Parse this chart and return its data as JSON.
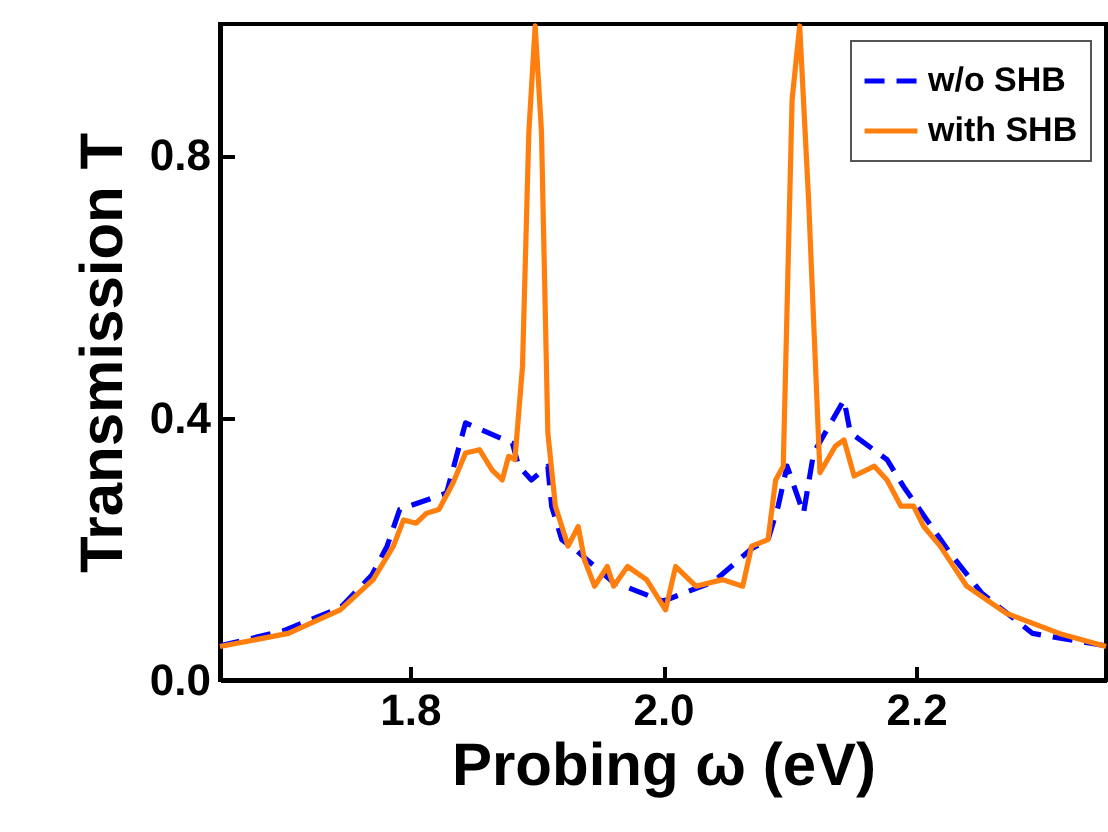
{
  "chart_data": {
    "type": "line",
    "xlabel": "Probing ω (eV)",
    "ylabel": "Transmission T",
    "xlim": [
      1.65,
      2.35
    ],
    "ylim": [
      0,
      1
    ],
    "xticks": [
      {
        "value": 1.8,
        "label": "1.8"
      },
      {
        "value": 2.0,
        "label": "2.0"
      },
      {
        "value": 2.2,
        "label": "2.2"
      }
    ],
    "yticks": [
      {
        "value": 0,
        "label": "0.0"
      },
      {
        "value": 0.4,
        "label": "0.4"
      },
      {
        "value": 0.8,
        "label": "0.8"
      }
    ],
    "legend": "top right",
    "series": [
      {
        "name": "w/o SHB",
        "color": "#0000ff",
        "line_style": "dashed",
        "x": [
          1.65,
          1.7,
          1.745,
          1.77,
          1.782,
          1.792,
          1.829,
          1.844,
          1.881,
          1.886,
          1.896,
          1.909,
          1.912,
          1.92,
          1.93,
          1.96,
          2.0,
          2.04,
          2.07,
          2.083,
          2.091,
          2.098,
          2.111,
          2.119,
          2.143,
          2.148,
          2.177,
          2.19,
          2.227,
          2.252,
          2.292,
          2.35
        ],
        "values": [
          0.052,
          0.075,
          0.11,
          0.16,
          0.204,
          0.26,
          0.285,
          0.392,
          0.361,
          0.326,
          0.305,
          0.326,
          0.265,
          0.214,
          0.2,
          0.15,
          0.12,
          0.15,
          0.2,
          0.214,
          0.265,
          0.326,
          0.254,
          0.346,
          0.427,
          0.377,
          0.336,
          0.295,
          0.193,
          0.132,
          0.071,
          0.052
        ]
      },
      {
        "name": "with SHB",
        "color": "#ff7f0e",
        "line_style": "solid",
        "x": [
          1.65,
          1.704,
          1.745,
          1.771,
          1.787,
          1.795,
          1.805,
          1.813,
          1.823,
          1.834,
          1.844,
          1.855,
          1.865,
          1.873,
          1.878,
          1.883,
          1.889,
          1.894,
          1.899,
          1.904,
          1.909,
          1.915,
          1.925,
          1.933,
          1.938,
          1.946,
          1.956,
          1.961,
          1.972,
          1.987,
          2.002,
          2.01,
          2.026,
          2.047,
          2.063,
          2.07,
          2.083,
          2.089,
          2.095,
          2.102,
          2.108,
          2.115,
          2.124,
          2.136,
          2.143,
          2.151,
          2.167,
          2.177,
          2.188,
          2.198,
          2.206,
          2.219,
          2.24,
          2.271,
          2.313,
          2.35
        ],
        "values": [
          0.051,
          0.071,
          0.107,
          0.153,
          0.204,
          0.244,
          0.239,
          0.254,
          0.26,
          0.3,
          0.346,
          0.351,
          0.32,
          0.305,
          0.341,
          0.336,
          0.478,
          0.835,
          0.997,
          0.835,
          0.377,
          0.265,
          0.204,
          0.234,
          0.183,
          0.143,
          0.173,
          0.143,
          0.173,
          0.153,
          0.107,
          0.173,
          0.143,
          0.153,
          0.143,
          0.204,
          0.214,
          0.305,
          0.326,
          0.885,
          0.997,
          0.733,
          0.316,
          0.356,
          0.366,
          0.311,
          0.326,
          0.305,
          0.265,
          0.265,
          0.234,
          0.204,
          0.143,
          0.102,
          0.071,
          0.051
        ]
      }
    ]
  }
}
